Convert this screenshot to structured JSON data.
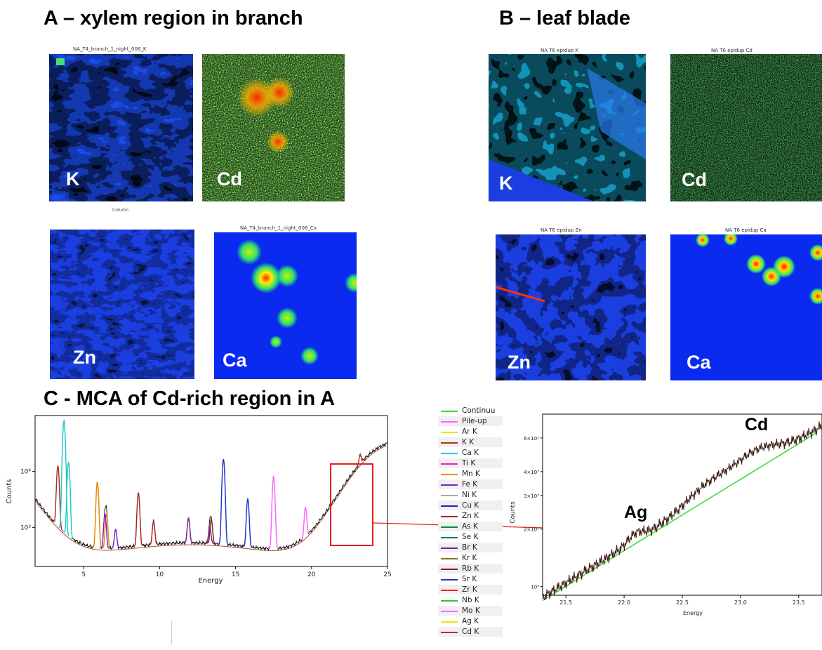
{
  "headings": {
    "a": "A – xylem region in branch",
    "b": "B – leaf blade",
    "c": "C - MCA of Cd-rich region in A"
  },
  "panel_a": {
    "k_title": "NA_T4_branch_1_night_006_K",
    "ca_title": "NA_T4_branch_1_night_006_Ca",
    "x_axis_label": "Column",
    "labels": {
      "k": "K",
      "cd": "Cd",
      "zn": "Zn",
      "ca": "Ca"
    }
  },
  "panel_b": {
    "k_title": "NA T6 epidup K",
    "cd_title": "NA T6 epidup Cd",
    "zn_title": "NA T6 epidup Zn",
    "ca_title": "NA T6 epidup Ca",
    "labels": {
      "k": "K",
      "cd": "Cd",
      "zn": "Zn",
      "ca": "Ca"
    }
  },
  "legend": [
    {
      "label": "Continuu",
      "color": "#33dd33"
    },
    {
      "label": "Pile-up",
      "color": "#ff66ff"
    },
    {
      "label": "Ar K",
      "color": "#e8e800"
    },
    {
      "label": "K K",
      "color": "#b03020"
    },
    {
      "label": "Ca K",
      "color": "#22cccc"
    },
    {
      "label": "Ti K",
      "color": "#ee22cc"
    },
    {
      "label": "Mn K",
      "color": "#ee8800"
    },
    {
      "label": "Fe K",
      "color": "#7722cc"
    },
    {
      "label": "Ni K",
      "color": "#aaaaaa"
    },
    {
      "label": "Cu K",
      "color": "#2222aa"
    },
    {
      "label": "Zn K",
      "color": "#aa2222"
    },
    {
      "label": "As K",
      "color": "#118833"
    },
    {
      "label": "Se K",
      "color": "#117766"
    },
    {
      "label": "Br K",
      "color": "#772288"
    },
    {
      "label": "Kr K",
      "color": "#887711"
    },
    {
      "label": "Rb K",
      "color": "#772222"
    },
    {
      "label": "Sr K",
      "color": "#2233cc"
    },
    {
      "label": "Zr K",
      "color": "#ee2222"
    },
    {
      "label": "Nb K",
      "color": "#22cc22"
    },
    {
      "label": "Mo K",
      "color": "#ff66ff"
    },
    {
      "label": "Ag K",
      "color": "#e8e800"
    },
    {
      "label": "Cd K",
      "color": "#b03030"
    }
  ],
  "chart_data": [
    {
      "type": "line",
      "xlabel": "Energy",
      "ylabel": "Counts",
      "y_scale": "log",
      "xlim": [
        1.8,
        25
      ],
      "ylim": [
        200,
        100000
      ],
      "x_ticks": [
        5,
        10,
        15,
        20,
        25
      ],
      "y_ticks": [
        {
          "value": 1000,
          "label": "10³"
        },
        {
          "value": 10000,
          "label": "10⁴"
        }
      ],
      "series": [
        {
          "name": "K K",
          "peaks": [
            [
              3.3,
              11500
            ]
          ]
        },
        {
          "name": "Ca K",
          "peaks": [
            [
              3.7,
              80000
            ],
            [
              4.0,
              14000
            ]
          ]
        },
        {
          "name": "Mn K",
          "peaks": [
            [
              5.9,
              6000
            ],
            [
              6.5,
              1300
            ]
          ]
        },
        {
          "name": "Fe K",
          "peaks": [
            [
              6.4,
              1300
            ],
            [
              7.1,
              500
            ]
          ]
        },
        {
          "name": "Zn K",
          "peaks": [
            [
              8.6,
              3700
            ],
            [
              9.6,
              800
            ]
          ]
        },
        {
          "name": "Br K",
          "peaks": [
            [
              11.9,
              950
            ],
            [
              13.3,
              500
            ]
          ]
        },
        {
          "name": "Rb K",
          "peaks": [
            [
              13.4,
              850
            ]
          ]
        },
        {
          "name": "Sr K",
          "peaks": [
            [
              14.2,
              16000
            ],
            [
              15.8,
              2800
            ]
          ]
        },
        {
          "name": "Mo K",
          "peaks": [
            [
              17.5,
              7500
            ],
            [
              19.6,
              1600
            ]
          ]
        },
        {
          "name": "Cd K",
          "peaks": [
            [
              23.2,
              6000
            ]
          ]
        }
      ]
    },
    {
      "type": "line",
      "xlabel": "Energy",
      "ylabel": "Counts",
      "y_scale": "log",
      "xlim": [
        21.3,
        23.7
      ],
      "ylim": [
        900,
        8000
      ],
      "x_ticks": [
        21.5,
        22.0,
        22.5,
        23.0,
        23.5
      ],
      "y_ticks": [
        {
          "value": 1000,
          "label": "10³"
        },
        {
          "value": 2000,
          "label": "2×10³"
        },
        {
          "value": 3000,
          "label": "3×10³"
        },
        {
          "value": 4000,
          "label": "4×10³"
        },
        {
          "value": 6000,
          "label": "6×10³"
        }
      ],
      "annotations": [
        "Ag",
        "Cd"
      ]
    }
  ]
}
